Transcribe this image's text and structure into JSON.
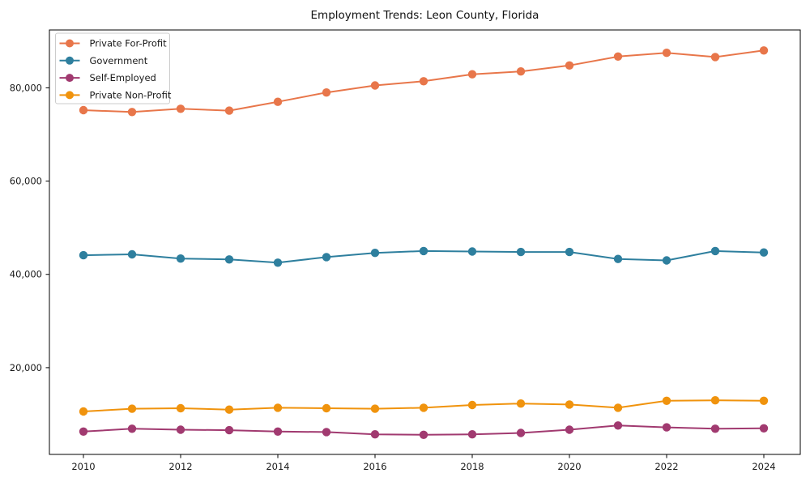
{
  "chart_data": {
    "type": "line",
    "title": "Employment Trends: Leon County, Florida",
    "xlabel": "",
    "ylabel": "",
    "x": [
      2010,
      2011,
      2012,
      2013,
      2014,
      2015,
      2016,
      2017,
      2018,
      2019,
      2020,
      2021,
      2022,
      2023,
      2024
    ],
    "series": [
      {
        "name": "Private For-Profit",
        "color": "#e8764a",
        "values": [
          75200,
          74800,
          75500,
          75100,
          77000,
          79000,
          80500,
          81400,
          82900,
          83500,
          84800,
          86700,
          87500,
          86600,
          88000
        ]
      },
      {
        "name": "Government",
        "color": "#2e7f9e",
        "values": [
          44100,
          44300,
          43400,
          43200,
          42500,
          43700,
          44600,
          45000,
          44900,
          44800,
          44800,
          43300,
          43000,
          45000,
          44700
        ]
      },
      {
        "name": "Self-Employed",
        "color": "#a13a70",
        "values": [
          6300,
          6900,
          6700,
          6600,
          6300,
          6200,
          5700,
          5600,
          5700,
          6000,
          6700,
          7600,
          7200,
          6900,
          7000
        ]
      },
      {
        "name": "Private Non-Profit",
        "color": "#f0930d",
        "values": [
          10600,
          11200,
          11300,
          11000,
          11400,
          11300,
          11200,
          11400,
          12000,
          12300,
          12100,
          11400,
          12900,
          13000,
          12900
        ]
      }
    ],
    "xlim": [
      2009.3,
      2024.75
    ],
    "ylim": [
      1400,
      92400
    ],
    "xticks": [
      2010,
      2012,
      2014,
      2016,
      2018,
      2020,
      2022,
      2024
    ],
    "yticks": [
      20000,
      40000,
      60000,
      80000
    ],
    "ytick_labels": [
      "20,000",
      "40,000",
      "60,000",
      "80,000"
    ],
    "grid": false,
    "legend_position": "upper-left",
    "marker": "circle",
    "axis_color": "#000000"
  }
}
